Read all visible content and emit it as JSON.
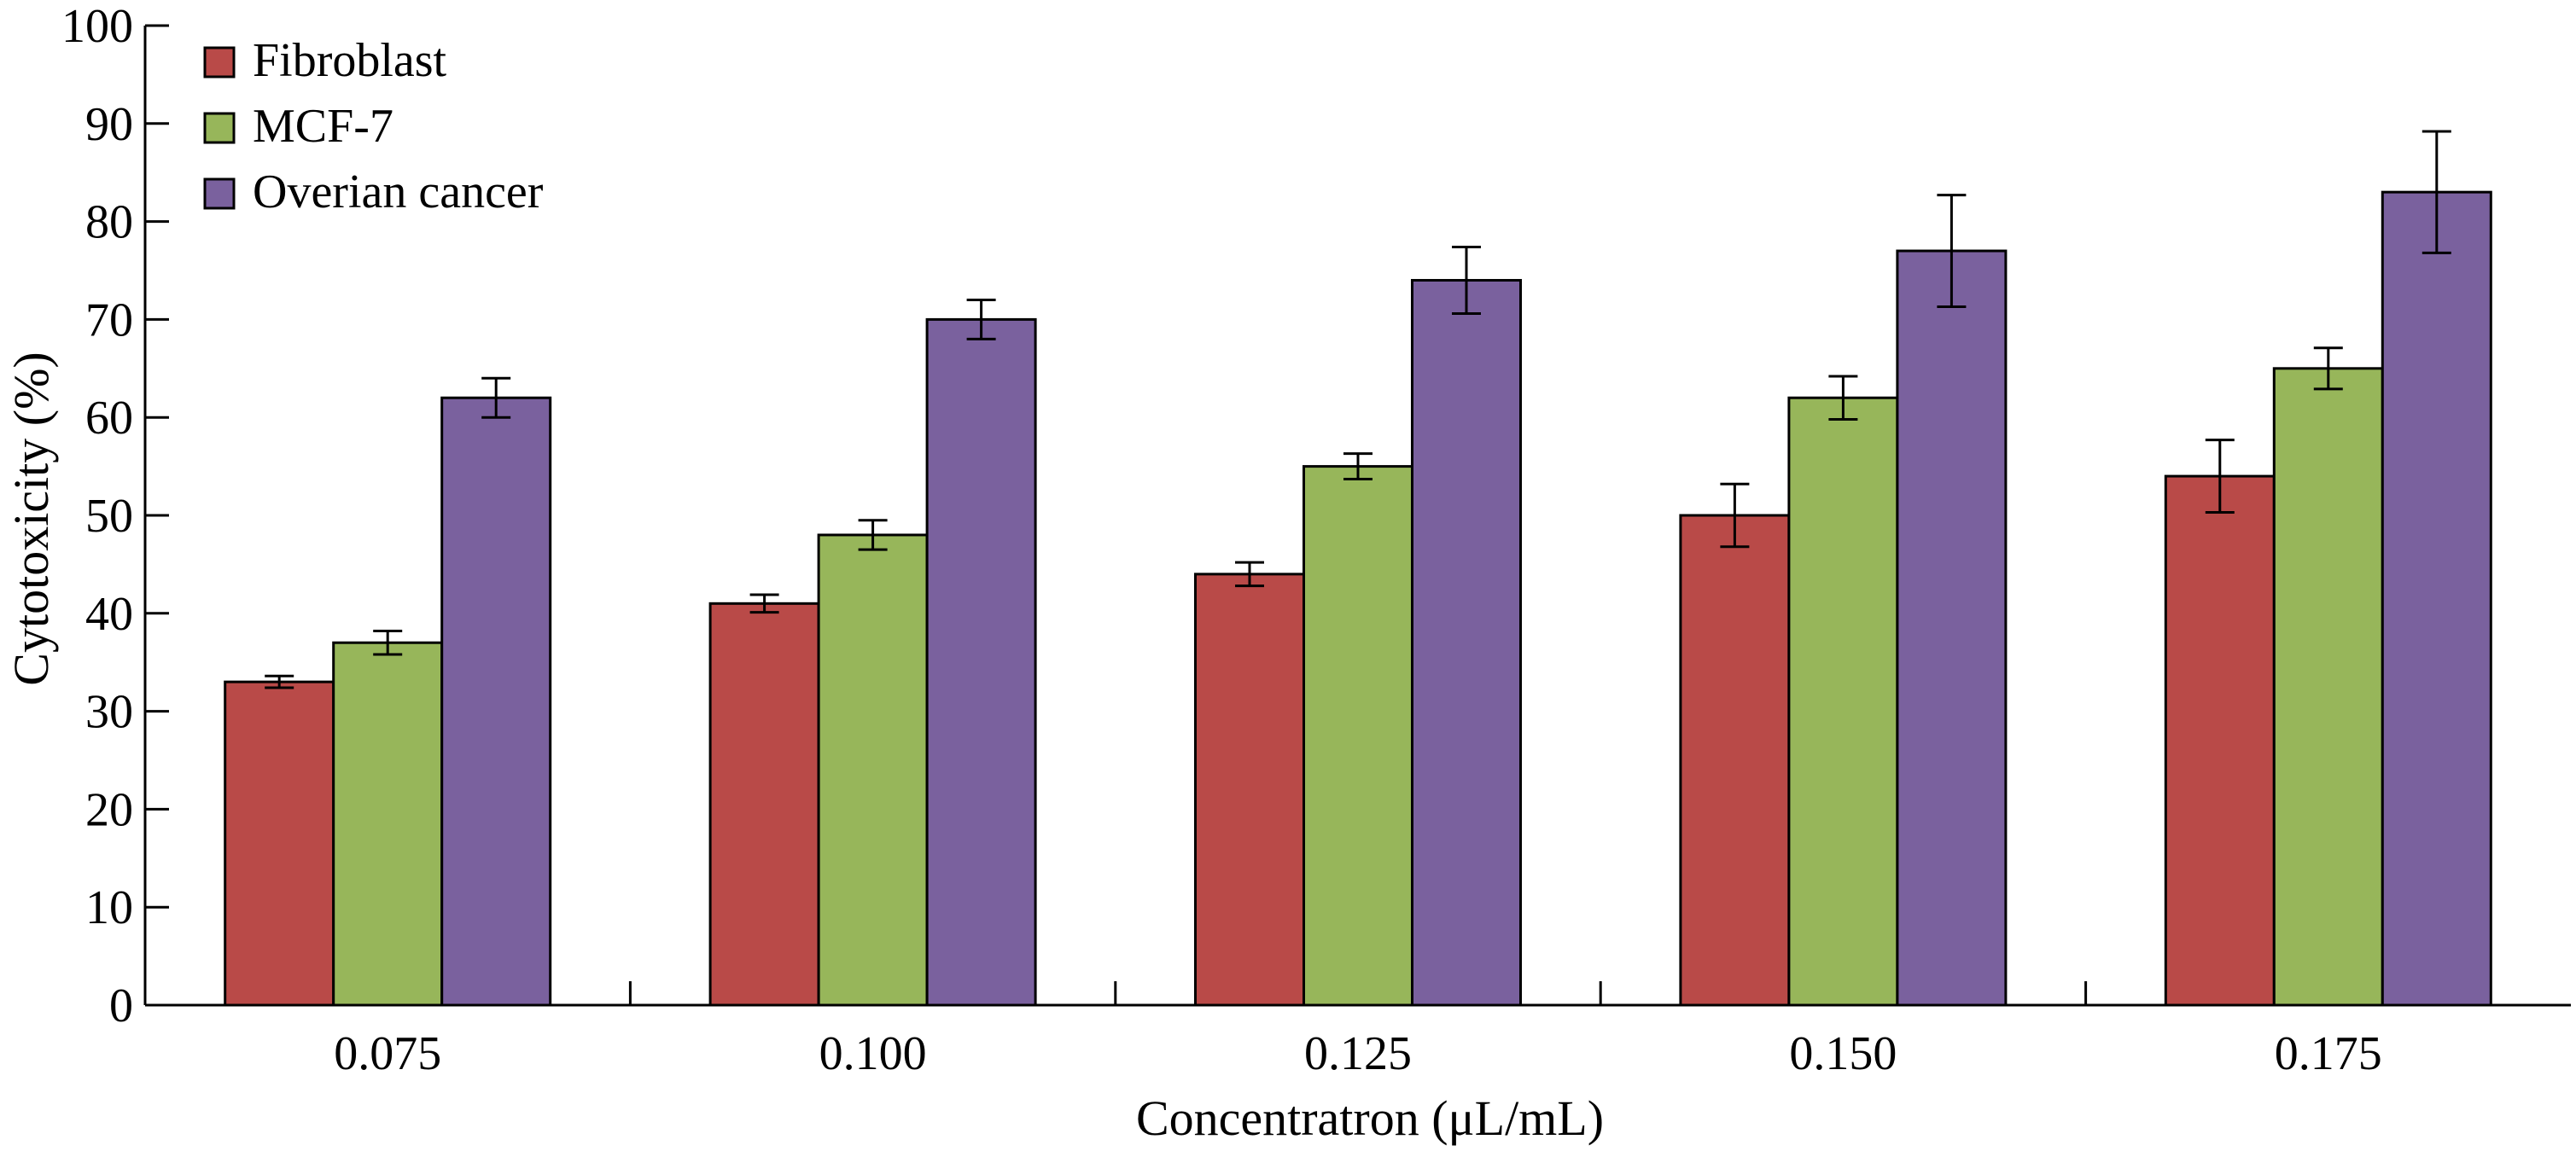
{
  "chart_data": {
    "type": "bar",
    "xlabel": "Concentratron (μL/mL)",
    "ylabel": "Cytotoxicity (%)",
    "ylim": [
      0,
      100
    ],
    "yticks": [
      0,
      10,
      20,
      30,
      40,
      50,
      60,
      70,
      80,
      90,
      100
    ],
    "categories": [
      "0.075",
      "0.100",
      "0.125",
      "0.150",
      "0.175"
    ],
    "grid": false,
    "legend_position": "top-left",
    "series": [
      {
        "name": "Fibroblast",
        "color": "#B94A48",
        "values": [
          33,
          41,
          44,
          50,
          54
        ],
        "errors": [
          0.6,
          0.9,
          1.2,
          3.2,
          3.7
        ]
      },
      {
        "name": "MCF-7",
        "color": "#97B65A",
        "values": [
          37,
          48,
          55,
          62,
          65
        ],
        "errors": [
          1.2,
          1.5,
          1.3,
          2.2,
          2.1
        ]
      },
      {
        "name": "Overian cancer",
        "color": "#7A619E",
        "values": [
          62,
          70,
          74,
          77,
          83
        ],
        "errors": [
          2.0,
          2.0,
          3.4,
          5.7,
          6.2
        ]
      }
    ]
  }
}
